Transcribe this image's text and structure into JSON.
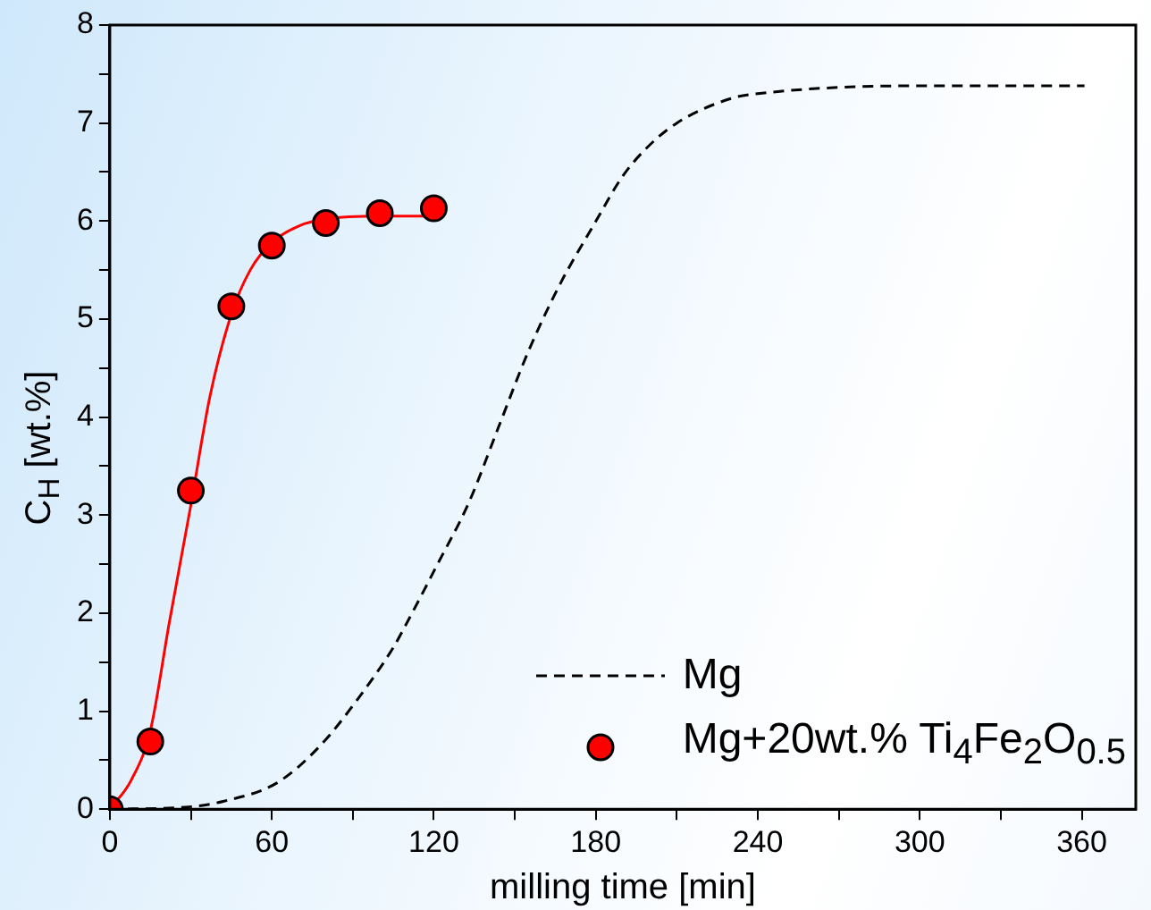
{
  "chart_data": {
    "type": "line",
    "xlabel": "milling time [min]",
    "ylabel": "C$_{H}$ [wt.%]",
    "xlim": [
      0,
      380
    ],
    "ylim": [
      0,
      8
    ],
    "xticks": [
      0,
      {
        "value": 30,
        "label": null
      },
      60,
      {
        "value": 90,
        "label": null
      },
      120,
      {
        "value": 150,
        "label": null
      },
      180,
      {
        "value": 210,
        "label": null
      },
      240,
      {
        "value": 270,
        "label": null
      },
      300,
      {
        "value": 330,
        "label": null
      },
      360
    ],
    "yticks": [
      0,
      {
        "value": 0.5,
        "label": null
      },
      1,
      {
        "value": 1.5,
        "label": null
      },
      2,
      {
        "value": 2.5,
        "label": null
      },
      3,
      {
        "value": 3.5,
        "label": null
      },
      4,
      {
        "value": 4.5,
        "label": null
      },
      5,
      {
        "value": 5.5,
        "label": null
      },
      6,
      {
        "value": 6.5,
        "label": null
      },
      7,
      {
        "value": 7.5,
        "label": null
      },
      8
    ],
    "grid": false,
    "legend": "bottom right",
    "series": [
      {
        "name": "Mg",
        "type": "line",
        "color": "#000000",
        "line_style": "dashed",
        "marker": "none",
        "x": [
          0,
          28,
          42,
          62,
          78,
          92,
          105,
          110,
          121,
          133,
          144,
          155,
          167,
          179,
          190,
          199,
          210,
          230,
          240,
          300,
          361
        ],
        "values": [
          0,
          0.02,
          0.08,
          0.27,
          0.65,
          1.13,
          1.65,
          1.9,
          2.48,
          3.13,
          3.9,
          4.67,
          5.37,
          5.95,
          6.46,
          6.75,
          7.0,
          7.25,
          7.3,
          7.38,
          7.38
        ]
      },
      {
        "name": "Mg+20wt.% Ti$_{4}$Fe$_{2}$O$_{0.5}$",
        "type": "scatter",
        "color": "#ff0000",
        "marker": "circle",
        "x": [
          0,
          15,
          30,
          45,
          60,
          80,
          100,
          120
        ],
        "values": [
          0,
          0.69,
          3.25,
          5.13,
          5.75,
          5.98,
          6.08,
          6.13
        ]
      },
      {
        "type": "line",
        "color": "#ff0000",
        "line_style": "solid",
        "marker": "none",
        "x": [
          0,
          8,
          15,
          22,
          30,
          37,
          45,
          52,
          60,
          70,
          80,
          100,
          120
        ],
        "values": [
          0,
          0.3,
          0.8,
          1.9,
          3.1,
          4.2,
          5.05,
          5.5,
          5.78,
          5.95,
          6.02,
          6.05,
          6.05
        ]
      }
    ]
  }
}
